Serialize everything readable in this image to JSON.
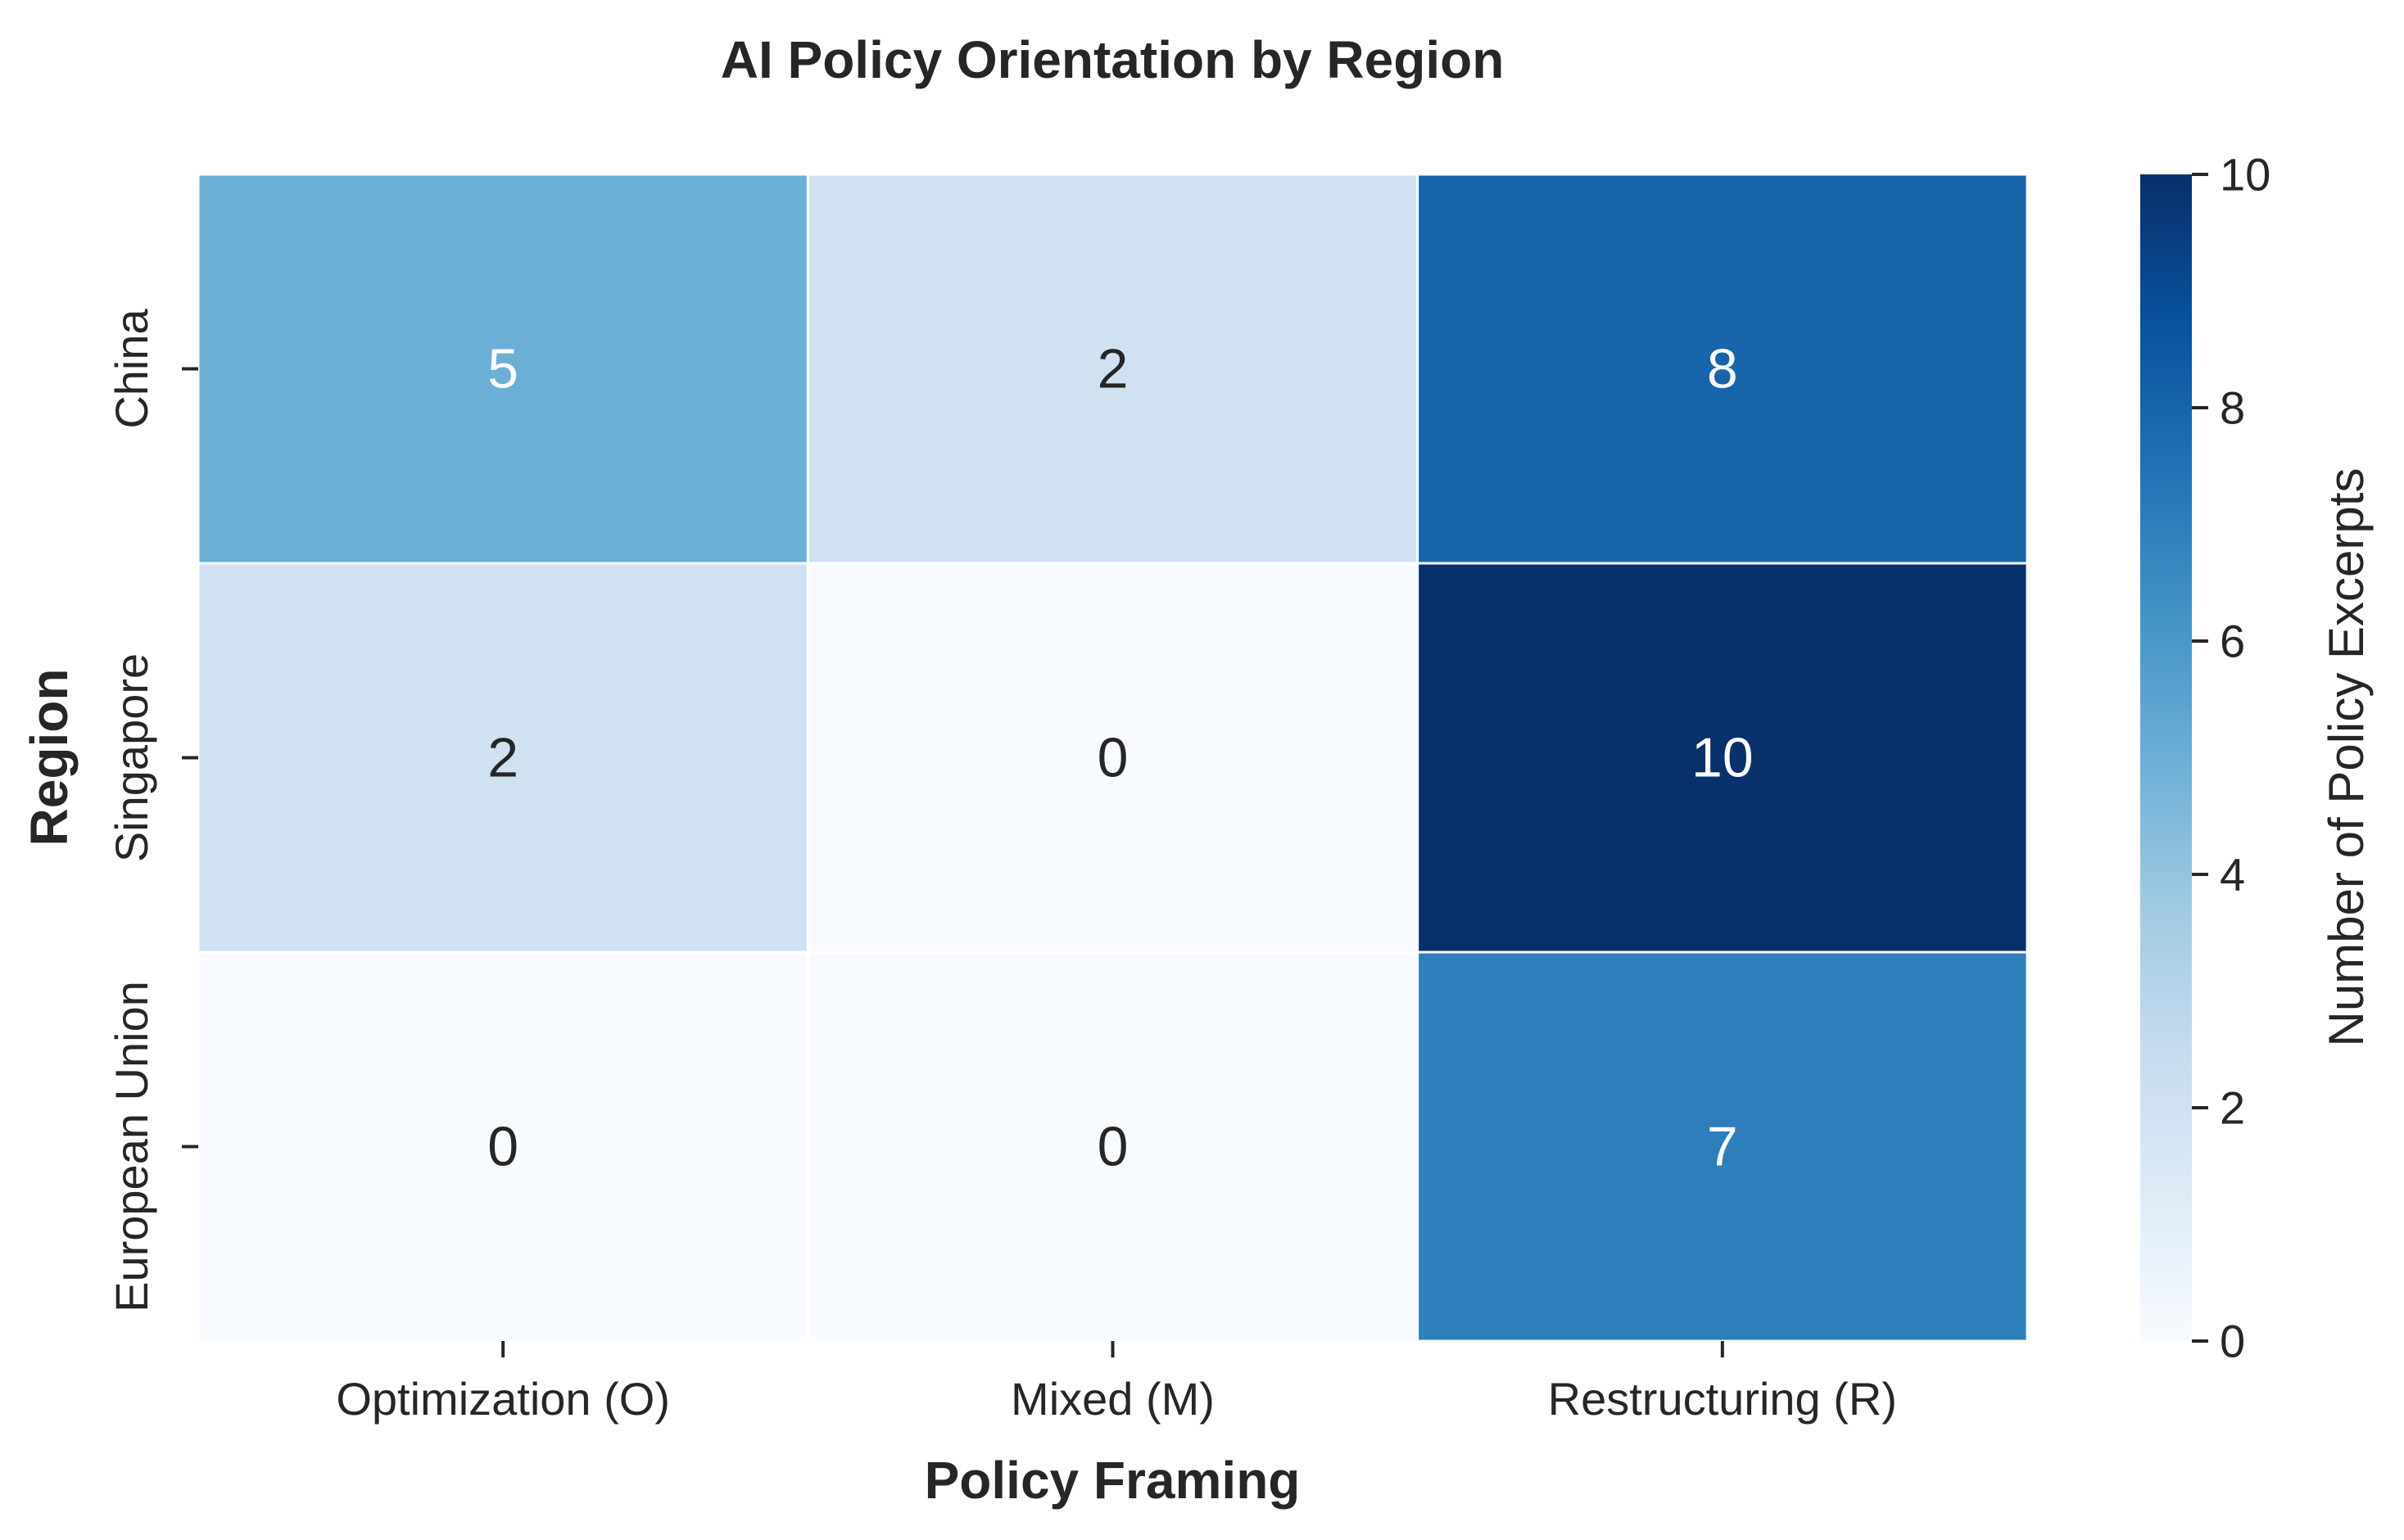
{
  "chart_data": {
    "type": "heatmap",
    "title": "AI Policy Orientation by Region",
    "xlabel": "Policy Framing",
    "ylabel": "Region",
    "x_categories": [
      "Optimization (O)",
      "Mixed (M)",
      "Restructuring (R)"
    ],
    "y_categories": [
      "China",
      "Singapore",
      "European Union"
    ],
    "values": [
      [
        5,
        2,
        8
      ],
      [
        2,
        0,
        10
      ],
      [
        0,
        0,
        7
      ]
    ],
    "colorbar": {
      "label": "Number of Policy Excerpts",
      "range": [
        0,
        10
      ],
      "ticks": [
        0,
        2,
        4,
        6,
        8,
        10
      ]
    },
    "colormap": "Blues",
    "colors": {
      "low": "#f7fbff",
      "high": "#08306b",
      "text_dark": "#262626",
      "text_light": "#ffffff"
    }
  }
}
